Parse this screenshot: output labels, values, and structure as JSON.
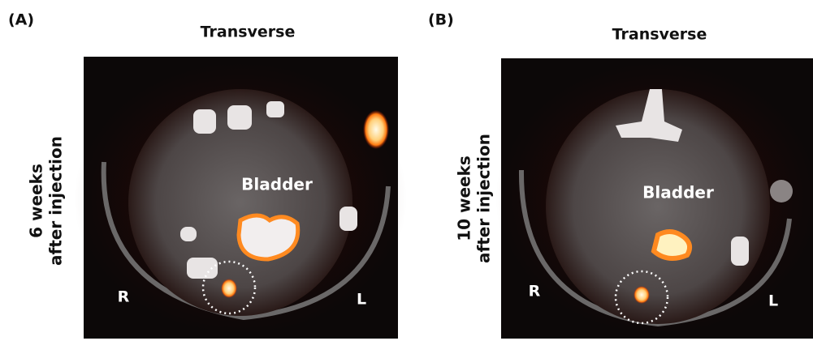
{
  "panels": [
    {
      "label": "(A)",
      "view": "Transverse",
      "time": [
        "6 weeks",
        "after injection"
      ],
      "organ": "Bladder",
      "right_side": "R",
      "left_side": "L"
    },
    {
      "label": "(B)",
      "view": "Transverse",
      "time": [
        "10 weeks",
        "after injection"
      ],
      "organ": "Bladder",
      "right_side": "R",
      "left_side": "L"
    }
  ]
}
